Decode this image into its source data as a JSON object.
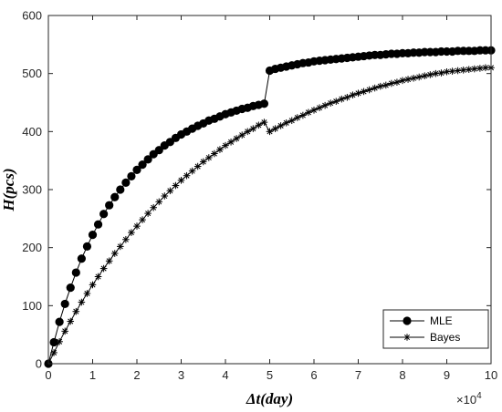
{
  "chart_data": {
    "type": "line",
    "xlabel": "Δt(day)",
    "ylabel": "H(pcs)",
    "x_multiplier_label": "×10",
    "x_multiplier_exponent": "4",
    "xlim": [
      0,
      100000
    ],
    "ylim": [
      0,
      600
    ],
    "xticks": [
      0,
      10000,
      20000,
      30000,
      40000,
      50000,
      60000,
      70000,
      80000,
      90000,
      100000
    ],
    "xtick_labels": [
      "0",
      "1",
      "2",
      "3",
      "4",
      "5",
      "6",
      "7",
      "8",
      "9",
      "10"
    ],
    "yticks": [
      0,
      100,
      200,
      300,
      400,
      500,
      600
    ],
    "ytick_labels": [
      "0",
      "100",
      "200",
      "300",
      "400",
      "500",
      "600"
    ],
    "grid": false,
    "legend_placement": "bottom-right",
    "colors": {
      "line": "#000000",
      "axis": "#262626",
      "background": "#ffffff"
    },
    "series": [
      {
        "name": "MLE",
        "marker": "filled-circle",
        "x": [
          0,
          1250,
          2500,
          3750,
          5000,
          6250,
          7500,
          8750,
          10000,
          11250,
          12500,
          13750,
          15000,
          16250,
          17500,
          18750,
          20000,
          21250,
          22500,
          23750,
          25000,
          26250,
          27500,
          28750,
          30000,
          31250,
          32500,
          33750,
          35000,
          36250,
          37500,
          38750,
          40000,
          41250,
          42500,
          43750,
          45000,
          46250,
          47500,
          48750,
          50000,
          51250,
          52500,
          53750,
          55000,
          56250,
          57500,
          58750,
          60000,
          61250,
          62500,
          63750,
          65000,
          66250,
          67500,
          68750,
          70000,
          71250,
          72500,
          73750,
          75000,
          76250,
          77500,
          78750,
          80000,
          81250,
          82500,
          83750,
          85000,
          86250,
          87500,
          88750,
          90000,
          91250,
          92500,
          93750,
          95000,
          96250,
          97500,
          98750,
          100000
        ],
        "values": [
          0,
          37,
          72,
          103,
          131,
          157,
          181,
          202,
          222,
          240,
          258,
          273,
          287,
          300,
          312,
          323,
          334,
          343,
          352,
          361,
          368,
          376,
          382,
          389,
          395,
          400,
          405,
          410,
          414,
          419,
          422,
          426,
          430,
          433,
          436,
          439,
          441,
          444,
          446,
          448,
          505,
          508,
          510,
          512,
          514,
          516,
          518,
          519,
          521,
          522,
          523,
          524,
          525,
          526,
          527,
          528,
          529,
          530,
          531,
          532,
          532,
          533,
          534,
          534,
          535,
          535,
          536,
          536,
          537,
          537,
          537,
          538,
          538,
          538,
          539,
          539,
          539,
          539,
          540,
          540,
          540
        ]
      },
      {
        "name": "Bayes",
        "marker": "asterisk",
        "x": [
          0,
          1250,
          2500,
          3750,
          5000,
          6250,
          7500,
          8750,
          10000,
          11250,
          12500,
          13750,
          15000,
          16250,
          17500,
          18750,
          20000,
          21250,
          22500,
          23750,
          25000,
          26250,
          27500,
          28750,
          30000,
          31250,
          32500,
          33750,
          35000,
          36250,
          37500,
          38750,
          40000,
          41250,
          42500,
          43750,
          45000,
          46250,
          47500,
          48750,
          50000,
          51250,
          52500,
          53750,
          55000,
          56250,
          57500,
          58750,
          60000,
          61250,
          62500,
          63750,
          65000,
          66250,
          67500,
          68750,
          70000,
          71250,
          72500,
          73750,
          75000,
          76250,
          77500,
          78750,
          80000,
          81250,
          82500,
          83750,
          85000,
          86250,
          87500,
          88750,
          90000,
          91250,
          92500,
          93750,
          95000,
          96250,
          97500,
          98750,
          100000
        ],
        "values": [
          0,
          19,
          38,
          56,
          73,
          90,
          106,
          121,
          136,
          150,
          164,
          177,
          190,
          202,
          214,
          226,
          237,
          248,
          259,
          269,
          279,
          289,
          298,
          307,
          316,
          324,
          332,
          340,
          348,
          355,
          362,
          369,
          376,
          382,
          388,
          394,
          400,
          405,
          411,
          416,
          400,
          405,
          410,
          415,
          419,
          424,
          428,
          433,
          437,
          441,
          445,
          449,
          452,
          456,
          459,
          463,
          466,
          469,
          472,
          475,
          478,
          480,
          483,
          485,
          488,
          490,
          492,
          494,
          496,
          498,
          500,
          501,
          503,
          504,
          505,
          506,
          507,
          508,
          509,
          510,
          510
        ]
      }
    ]
  }
}
